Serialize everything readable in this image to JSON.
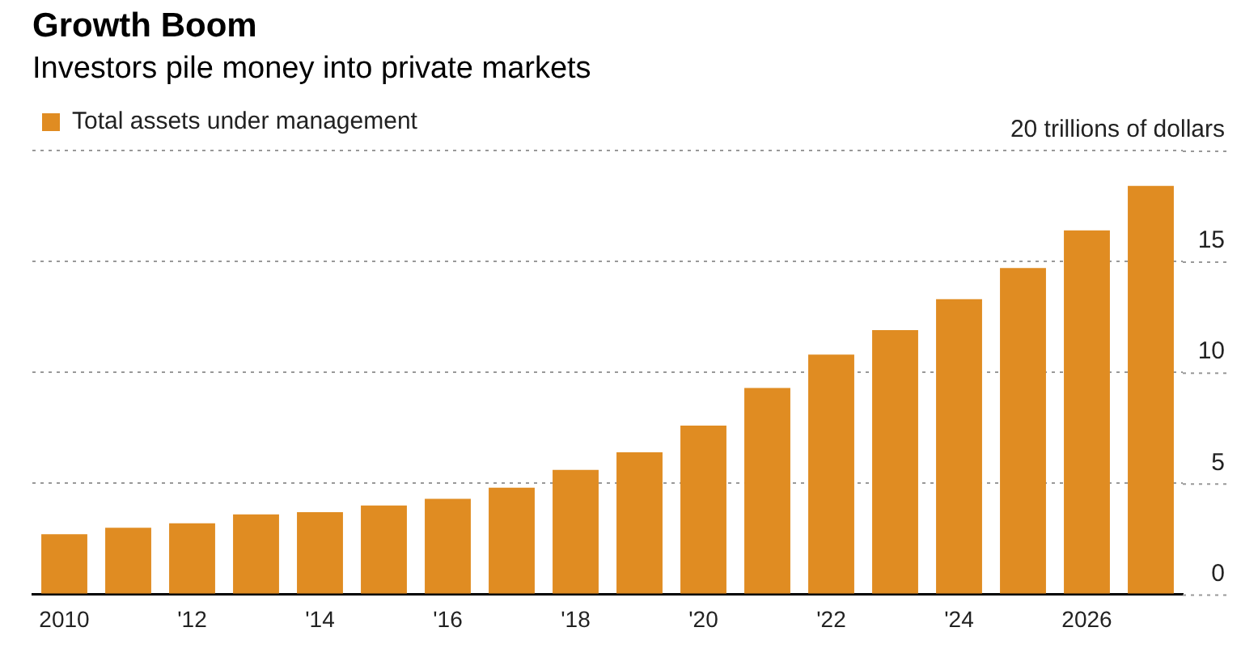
{
  "chart_data": {
    "type": "bar",
    "title": "Growth Boom",
    "subtitle": "Investors pile money into private markets",
    "categories": [
      "2010",
      null,
      "'12",
      null,
      "'14",
      null,
      "'16",
      null,
      "'18",
      null,
      "'20",
      null,
      "'22",
      null,
      "'24",
      null,
      "2026",
      null
    ],
    "series": [
      {
        "name": "Total assets under management",
        "color": "#e08c22",
        "values": [
          2.7,
          3.0,
          3.2,
          3.6,
          3.7,
          4.0,
          4.3,
          4.8,
          5.6,
          6.4,
          7.6,
          9.3,
          10.8,
          11.9,
          13.3,
          14.7,
          16.4,
          18.4
        ]
      }
    ],
    "ylim": [
      0,
      20
    ],
    "yticks": [
      0,
      5,
      10,
      15,
      {
        "value": 20,
        "label": "20 trillions of dollars"
      }
    ],
    "grid": "y",
    "legend": "top left"
  }
}
